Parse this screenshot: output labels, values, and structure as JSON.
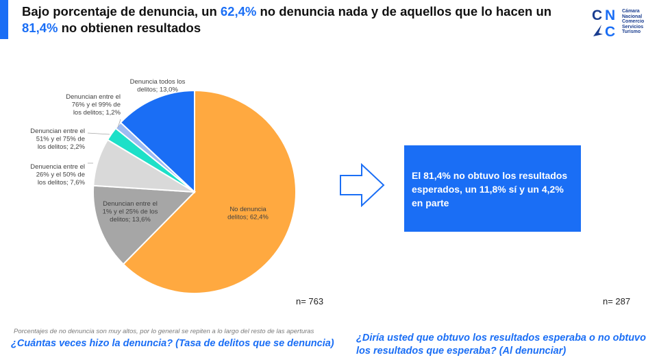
{
  "header": {
    "title_part1": "Bajo porcentaje de denuncia, un ",
    "title_highlight1": "62,4%",
    "title_part2": " no denuncia nada y de aquellos que lo hacen un ",
    "title_highlight2": "81,4%",
    "title_part3": " no obtienen resultados"
  },
  "logo": {
    "letters": [
      "C",
      "N",
      "C"
    ],
    "words": [
      "Cámara",
      "Nacional",
      "Comercio",
      "Servicios",
      "Turismo"
    ]
  },
  "chart_data": {
    "type": "pie",
    "title": "",
    "series": [
      {
        "label": "No denuncia delitos; 62,4%",
        "value": 62.4,
        "color": "#ffa940"
      },
      {
        "label": "Denuncian entre el 1% y el 25% de los delitos; 13,6%",
        "value": 13.6,
        "color": "#a6a6a6"
      },
      {
        "label": "Denuencia entre el 26% y el 50% de los delitos; 7,6%",
        "value": 7.6,
        "color": "#d9d9d9"
      },
      {
        "label": "Denuncian entre el 51% y el 75% de los delitos; 2,2%",
        "value": 2.2,
        "color": "#1de0c8"
      },
      {
        "label": "Denuncian entre el 76% y el 99% de los delitos; 1,2%",
        "value": 1.2,
        "color": "#9dbbf2"
      },
      {
        "label": "Denuncia todos los delitos; 13,0%",
        "value": 13.0,
        "color": "#1a6ef5"
      }
    ],
    "legend": "none"
  },
  "labels": {
    "n_left": "n= 763",
    "n_right": "n= 287"
  },
  "callout": {
    "text": "El  81,4% no obtuvo los resultados esperados, un 11,8% sí y un 4,2% en parte"
  },
  "footer": {
    "note": "Porcentajes de no denuncia son muy altos, por lo general se repiten a lo largo del resto de las aperturas",
    "question_left": "¿Cuántas veces hizo la denuncia?  (Tasa de delitos que se denuncia)",
    "question_right": "¿Diría usted que obtuvo los resultados esperaba o no obtuvo los resultados que esperaba?  (Al denunciar)"
  },
  "colors": {
    "accent": "#1a6ef5",
    "logo": "#1a3d8f"
  }
}
